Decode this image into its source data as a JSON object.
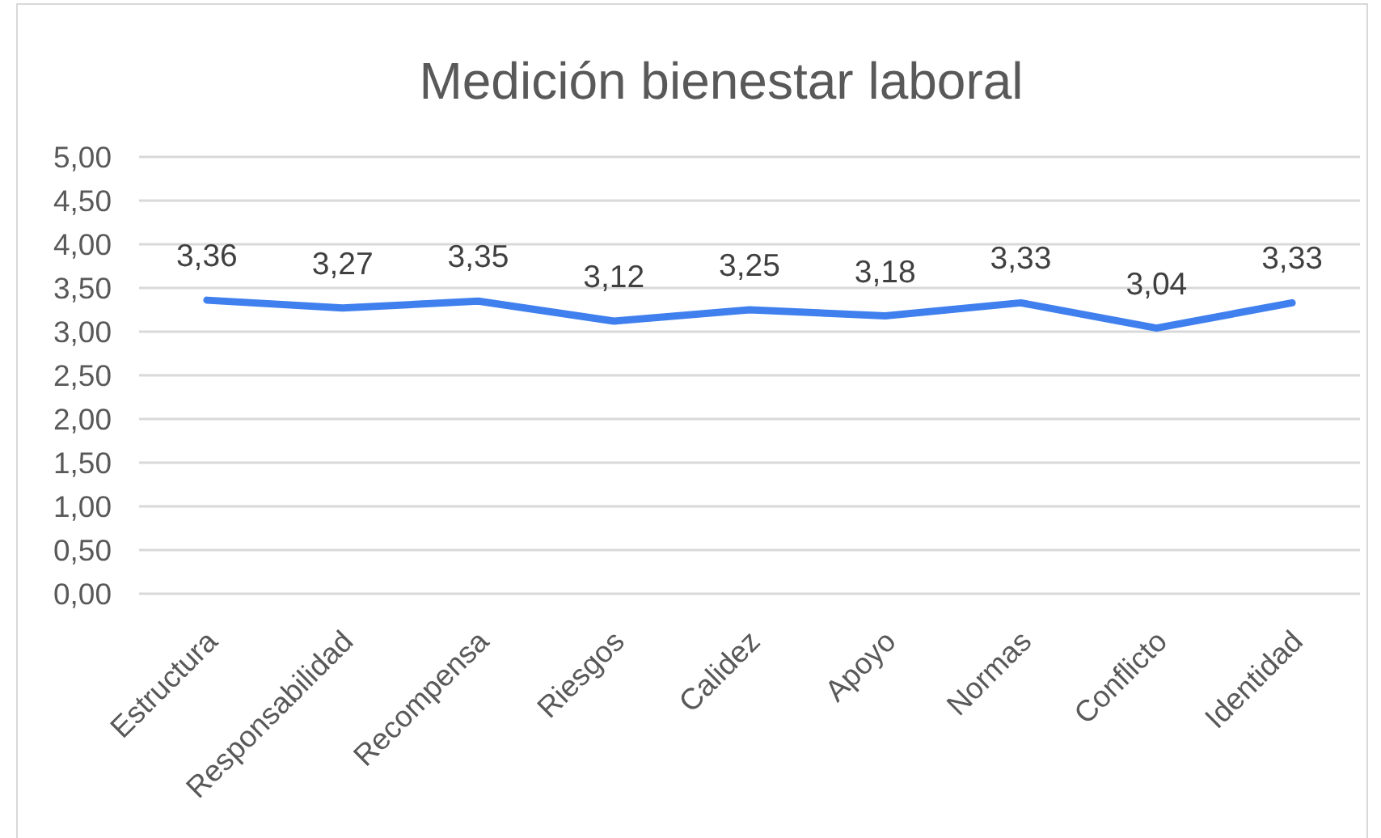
{
  "chart_data": {
    "type": "line",
    "title": "Medición bienestar laboral",
    "categories": [
      "Estructura",
      "Responsabilidad",
      "Recompensa",
      "Riesgos",
      "Calidez",
      "Apoyo",
      "Normas",
      "Conflicto",
      "Identidad"
    ],
    "values": [
      3.36,
      3.27,
      3.35,
      3.12,
      3.25,
      3.18,
      3.33,
      3.04,
      3.33
    ],
    "color": "#3f7fee",
    "value_labels": [
      "3,36",
      "3,27",
      "3,35",
      "3,12",
      "3,25",
      "3,18",
      "3,33",
      "3,04",
      "3,33"
    ],
    "ylim": [
      0,
      5
    ],
    "yticks": [
      {
        "value": 0,
        "label": "0,00"
      },
      {
        "value": 0.5,
        "label": "0,50"
      },
      {
        "value": 1,
        "label": "1,00"
      },
      {
        "value": 1.5,
        "label": "1,50"
      },
      {
        "value": 2,
        "label": "2,00"
      },
      {
        "value": 2.5,
        "label": "2,50"
      },
      {
        "value": 3,
        "label": "3,00"
      },
      {
        "value": 3.5,
        "label": "3,50"
      },
      {
        "value": 4,
        "label": "4,00"
      },
      {
        "value": 4.5,
        "label": "4,50"
      },
      {
        "value": 5,
        "label": "5,00"
      }
    ],
    "grid": "y"
  }
}
